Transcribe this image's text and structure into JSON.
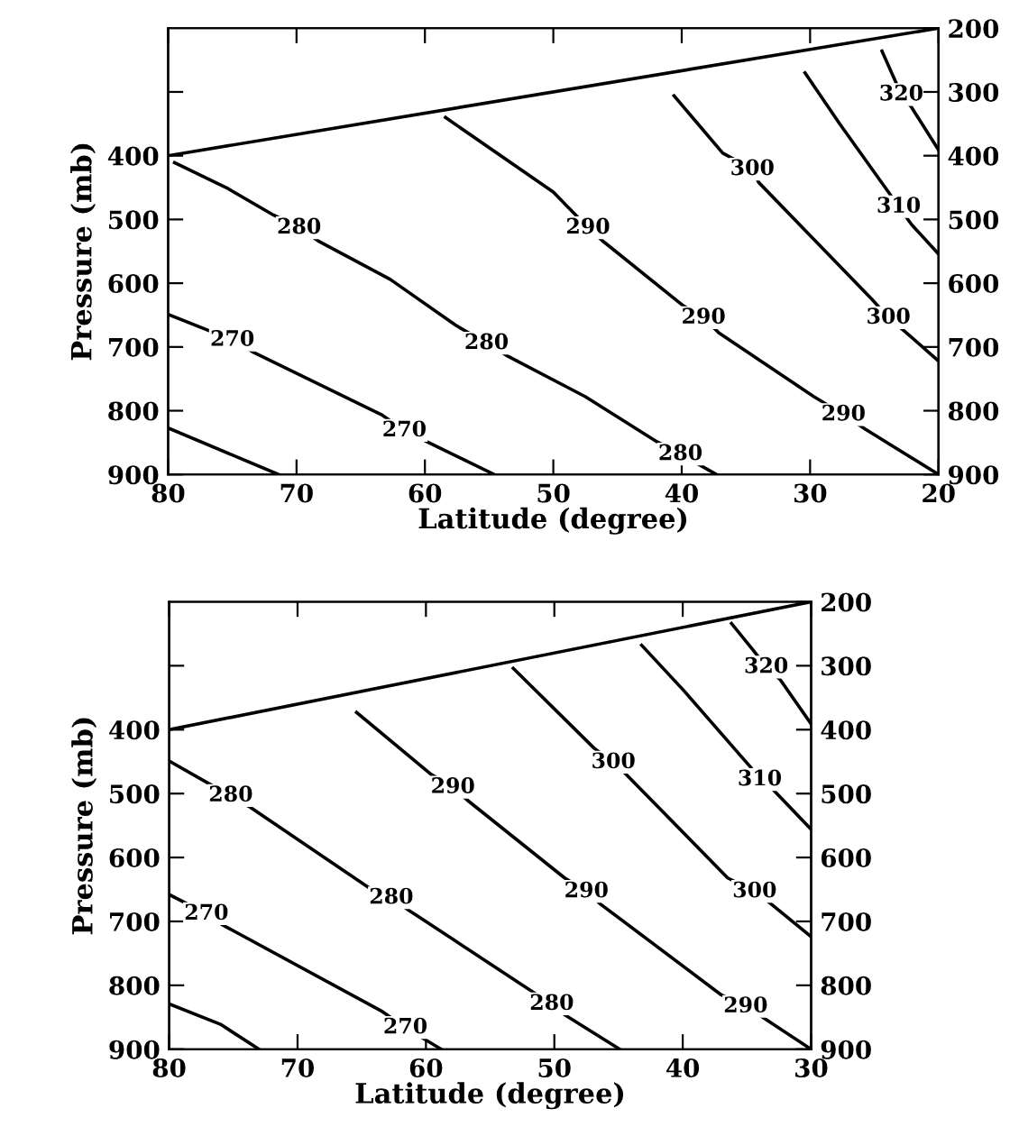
{
  "chart_data": [
    {
      "type": "line",
      "xlabel": "Latitude (degree)",
      "ylabel": "Pressure (mb)",
      "xlim": [
        80,
        20
      ],
      "ylim": [
        900,
        200
      ],
      "y2lim": [
        900,
        200
      ],
      "xticks": [
        80,
        70,
        60,
        50,
        40,
        30,
        20
      ],
      "yticks": [
        {
          "value": 300,
          "label": null
        },
        400,
        500,
        600,
        700,
        800,
        900
      ],
      "y2ticks": [
        200,
        300,
        400,
        500,
        600,
        700,
        800,
        900
      ],
      "grid": false,
      "legend": false,
      "marker": "none",
      "line_style": "solid",
      "series": [
        {
          "color": "#000000",
          "x": [
            80,
            20
          ],
          "values": [
            400,
            200
          ]
        },
        {
          "color": "#000000",
          "x": [
            80,
            71.4
          ],
          "values": [
            827,
            900
          ]
        },
        {
          "color": "#000000",
          "x": [
            80,
            75.0,
            73.3,
            63.4,
            61.6,
            59.6,
            54.6
          ],
          "values": [
            649,
            689,
            709,
            806,
            831,
            851,
            900
          ]
        },
        {
          "color": "#000000",
          "x": [
            79.5,
            75.3,
            71.8,
            69.8,
            68.2,
            62.7,
            57.6,
            55.2,
            53.5,
            47.5,
            41.9,
            40.1,
            37.3
          ],
          "values": [
            411,
            452,
            493,
            513,
            535,
            594,
            666,
            694,
            715,
            778,
            849,
            868,
            900
          ]
        },
        {
          "color": "#000000",
          "x": [
            58.4,
            50.0,
            47.3,
            46.2,
            39.9,
            38.3,
            37.1,
            29.7,
            27.4,
            25.7,
            20
          ],
          "values": [
            340,
            457,
            513,
            533,
            635,
            654,
            678,
            778,
            806,
            829,
            900
          ]
        },
        {
          "color": "#000000",
          "x": [
            40.6,
            36.8,
            34.5,
            34.0,
            25.2,
            23.9,
            22.6,
            20
          ],
          "values": [
            306,
            396,
            421,
            442,
            625,
            654,
            676,
            722
          ]
        },
        {
          "color": "#000000",
          "x": [
            30.4,
            27.7,
            23.9,
            23.1,
            22.1,
            20
          ],
          "values": [
            270,
            350,
            457,
            480,
            508,
            554
          ]
        },
        {
          "color": "#000000",
          "x": [
            24.4,
            22.9,
            22.1,
            20
          ],
          "values": [
            236,
            304,
            324,
            391
          ]
        }
      ],
      "annotations": [
        {
          "text": "270",
          "x": 75.0,
          "y": 689
        },
        {
          "text": "270",
          "x": 61.6,
          "y": 831
        },
        {
          "text": "280",
          "x": 69.8,
          "y": 513
        },
        {
          "text": "280",
          "x": 55.2,
          "y": 694
        },
        {
          "text": "280",
          "x": 40.1,
          "y": 868
        },
        {
          "text": "290",
          "x": 47.3,
          "y": 513
        },
        {
          "text": "290",
          "x": 38.3,
          "y": 654
        },
        {
          "text": "290",
          "x": 27.4,
          "y": 806
        },
        {
          "text": "300",
          "x": 34.5,
          "y": 421
        },
        {
          "text": "300",
          "x": 23.9,
          "y": 654
        },
        {
          "text": "310",
          "x": 23.1,
          "y": 480
        },
        {
          "text": "320",
          "x": 22.9,
          "y": 304
        }
      ]
    },
    {
      "type": "line",
      "xlabel": "Latitude (degree)",
      "ylabel": "Pressure (mb)",
      "xlim": [
        80,
        30
      ],
      "ylim": [
        900,
        200
      ],
      "y2lim": [
        900,
        200
      ],
      "xticks": [
        80,
        70,
        60,
        50,
        40,
        30
      ],
      "yticks": [
        {
          "value": 300,
          "label": null
        },
        400,
        500,
        600,
        700,
        800,
        900
      ],
      "y2ticks": [
        200,
        300,
        400,
        500,
        600,
        700,
        800,
        900
      ],
      "grid": false,
      "legend": false,
      "marker": "none",
      "line_style": "solid",
      "series": [
        {
          "color": "#000000",
          "x": [
            80,
            30
          ],
          "values": [
            400,
            200
          ]
        },
        {
          "color": "#000000",
          "x": [
            80,
            76.0,
            73.0
          ],
          "values": [
            829,
            861,
            900
          ]
        },
        {
          "color": "#000000",
          "x": [
            80,
            77.1,
            75.8,
            63.4,
            61.6,
            60.3,
            58.8
          ],
          "values": [
            658,
            688,
            706,
            841,
            866,
            882,
            900
          ]
        },
        {
          "color": "#000000",
          "x": [
            80,
            76.6,
            75.2,
            73.8,
            64.4,
            62.7,
            61.3,
            51.7,
            50.2,
            49.2,
            44.9
          ],
          "values": [
            449,
            488,
            503,
            520,
            648,
            663,
            683,
            810,
            829,
            846,
            900
          ]
        },
        {
          "color": "#000000",
          "x": [
            65.4,
            59.6,
            57.9,
            56.8,
            49.2,
            47.5,
            46.4,
            37.0,
            35.1,
            33.7,
            30
          ],
          "values": [
            373,
            470,
            490,
            510,
            632,
            653,
            673,
            815,
            833,
            851,
            900
          ]
        },
        {
          "color": "#000000",
          "x": [
            53.2,
            46.9,
            45.4,
            44.4,
            36.5,
            34.4,
            33.4,
            30
          ],
          "values": [
            304,
            429,
            451,
            470,
            632,
            653,
            668,
            724
          ]
        },
        {
          "color": "#000000",
          "x": [
            43.2,
            40.0,
            34.7,
            34.0,
            32.9,
            30
          ],
          "values": [
            268,
            337,
            459,
            478,
            495,
            556
          ]
        },
        {
          "color": "#000000",
          "x": [
            36.2,
            34.5,
            33.5,
            32.4,
            30
          ],
          "values": [
            234,
            276,
            302,
            322,
            391
          ]
        }
      ],
      "annotations": [
        {
          "text": "270",
          "x": 77.1,
          "y": 688
        },
        {
          "text": "270",
          "x": 61.6,
          "y": 866
        },
        {
          "text": "280",
          "x": 75.2,
          "y": 503
        },
        {
          "text": "280",
          "x": 62.7,
          "y": 663
        },
        {
          "text": "280",
          "x": 50.2,
          "y": 829
        },
        {
          "text": "290",
          "x": 57.9,
          "y": 490
        },
        {
          "text": "290",
          "x": 47.5,
          "y": 653
        },
        {
          "text": "290",
          "x": 35.1,
          "y": 833
        },
        {
          "text": "300",
          "x": 45.4,
          "y": 451
        },
        {
          "text": "300",
          "x": 34.4,
          "y": 653
        },
        {
          "text": "310",
          "x": 34.0,
          "y": 478
        },
        {
          "text": "320",
          "x": 33.5,
          "y": 302
        }
      ]
    }
  ]
}
